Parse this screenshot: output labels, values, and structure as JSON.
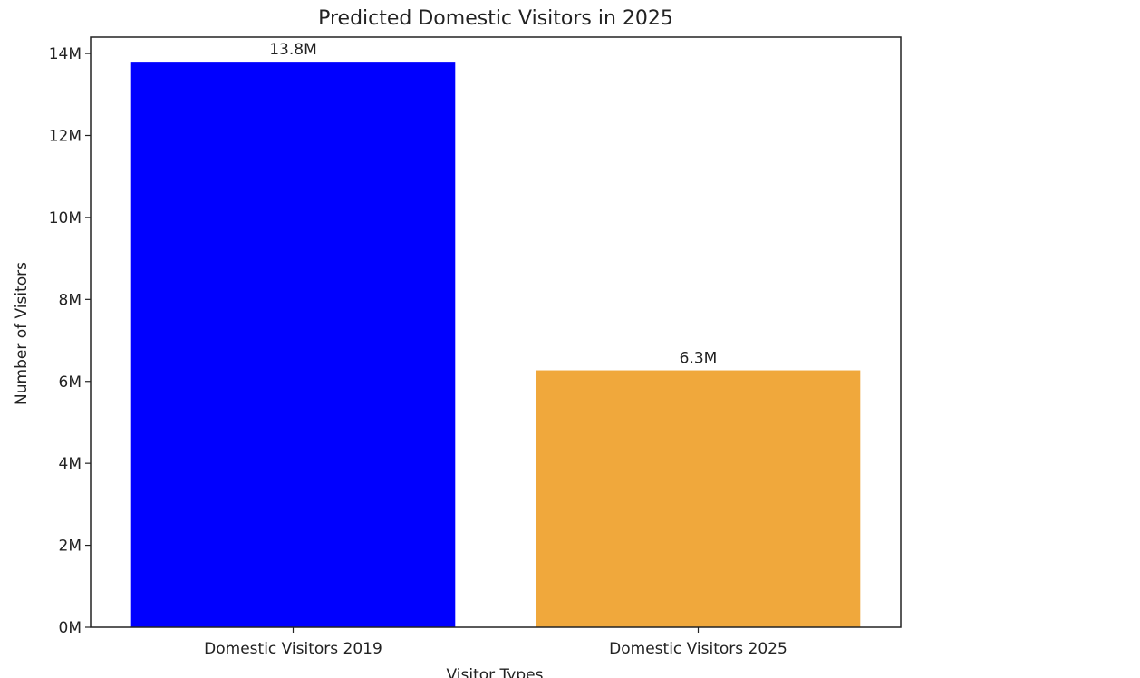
{
  "chart_data": {
    "type": "bar",
    "title": "Predicted Domestic Visitors in 2025",
    "xlabel": "Visitor Types",
    "ylabel": "Number of Visitors",
    "categories": [
      "Domestic Visitors 2019",
      "Domestic Visitors 2025"
    ],
    "values": [
      13800000,
      6270000
    ],
    "value_labels": [
      "13.8M",
      "6.3M"
    ],
    "colors": [
      "#0000ff",
      "#f0a83c"
    ],
    "ylim": [
      0,
      14400000
    ],
    "yticks": [
      0,
      2000000,
      4000000,
      6000000,
      8000000,
      10000000,
      12000000,
      14000000
    ],
    "ytick_labels": [
      "0M",
      "2M",
      "4M",
      "6M",
      "8M",
      "10M",
      "12M",
      "14M"
    ],
    "grid": false,
    "legend": false
  }
}
